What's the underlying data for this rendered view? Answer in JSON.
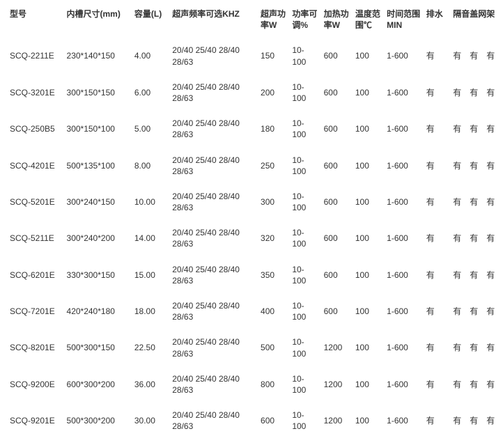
{
  "table": {
    "columns": [
      {
        "key": "model",
        "label": "型号",
        "class": "c-model"
      },
      {
        "key": "dim",
        "label": "内槽尺寸(mm)",
        "class": "c-dim"
      },
      {
        "key": "capacity",
        "label": "容量(L)",
        "class": "c-cap"
      },
      {
        "key": "freq",
        "label": "超声频率可选KHZ",
        "class": "c-freq"
      },
      {
        "key": "us_power",
        "label": "超声功率W",
        "class": "c-upow"
      },
      {
        "key": "adj",
        "label": "功率可调%",
        "class": "c-adj"
      },
      {
        "key": "heat",
        "label": "加热功率W",
        "class": "c-heat"
      },
      {
        "key": "temp",
        "label": "温度范围℃",
        "class": "c-temp"
      },
      {
        "key": "time",
        "label": "时间范围MIN",
        "class": "c-time"
      },
      {
        "key": "drain",
        "label": "排水",
        "class": "c-drain"
      },
      {
        "key": "cover",
        "label": "隔音盖网架",
        "class": "c-cover"
      }
    ],
    "rows": [
      {
        "model": "SCQ-2211E",
        "dim": "230*140*150",
        "capacity": "4.00",
        "freq": "20/40 25/40 28/40 28/63",
        "us_power": "150",
        "adj": "10-100",
        "heat": "600",
        "temp": "100",
        "time": "1-600",
        "drain": "有",
        "cover": "有　有　有"
      },
      {
        "model": "SCQ-3201E",
        "dim": "300*150*150",
        "capacity": "6.00",
        "freq": "20/40 25/40 28/40 28/63",
        "us_power": "200",
        "adj": "10-100",
        "heat": "600",
        "temp": "100",
        "time": "1-600",
        "drain": "有",
        "cover": "有　有　有"
      },
      {
        "model": "SCQ-250B5",
        "dim": "300*150*100",
        "capacity": "5.00",
        "freq": "20/40 25/40 28/40 28/63",
        "us_power": "180",
        "adj": "10-100",
        "heat": "600",
        "temp": "100",
        "time": "1-600",
        "drain": "有",
        "cover": "有　有　有"
      },
      {
        "model": "SCQ-4201E",
        "dim": "500*135*100",
        "capacity": "8.00",
        "freq": "20/40 25/40 28/40 28/63",
        "us_power": "250",
        "adj": "10-100",
        "heat": "600",
        "temp": "100",
        "time": "1-600",
        "drain": "有",
        "cover": "有　有　有"
      },
      {
        "model": "SCQ-5201E",
        "dim": "300*240*150",
        "capacity": "10.00",
        "freq": "20/40 25/40 28/40 28/63",
        "us_power": "300",
        "adj": "10-100",
        "heat": "600",
        "temp": "100",
        "time": "1-600",
        "drain": "有",
        "cover": "有　有　有"
      },
      {
        "model": "SCQ-5211E",
        "dim": "300*240*200",
        "capacity": "14.00",
        "freq": "20/40 25/40 28/40 28/63",
        "us_power": "320",
        "adj": "10-100",
        "heat": "600",
        "temp": "100",
        "time": "1-600",
        "drain": "有",
        "cover": "有　有　有"
      },
      {
        "model": "SCQ-6201E",
        "dim": "330*300*150",
        "capacity": "15.00",
        "freq": "20/40 25/40 28/40 28/63",
        "us_power": "350",
        "adj": "10-100",
        "heat": "600",
        "temp": "100",
        "time": "1-600",
        "drain": "有",
        "cover": "有　有　有"
      },
      {
        "model": "SCQ-7201E",
        "dim": "420*240*180",
        "capacity": "18.00",
        "freq": "20/40 25/40 28/40 28/63",
        "us_power": "400",
        "adj": "10-100",
        "heat": "600",
        "temp": "100",
        "time": "1-600",
        "drain": "有",
        "cover": "有　有　有"
      },
      {
        "model": "SCQ-8201E",
        "dim": "500*300*150",
        "capacity": "22.50",
        "freq": "20/40 25/40 28/40 28/63",
        "us_power": "500",
        "adj": "10-100",
        "heat": "1200",
        "temp": "100",
        "time": "1-600",
        "drain": "有",
        "cover": "有　有　有"
      },
      {
        "model": "SCQ-9200E",
        "dim": "600*300*200",
        "capacity": "36.00",
        "freq": "20/40 25/40 28/40 28/63",
        "us_power": "800",
        "adj": "10-100",
        "heat": "1200",
        "temp": "100",
        "time": "1-600",
        "drain": "有",
        "cover": "有　有　有"
      },
      {
        "model": "SCQ-9201E",
        "dim": "500*300*200",
        "capacity": "30.00",
        "freq": "20/40 25/40 28/40 28/63",
        "us_power": "600",
        "adj": "10-100",
        "heat": "1200",
        "temp": "100",
        "time": "1-600",
        "drain": "有",
        "cover": "有　有　有"
      }
    ]
  }
}
